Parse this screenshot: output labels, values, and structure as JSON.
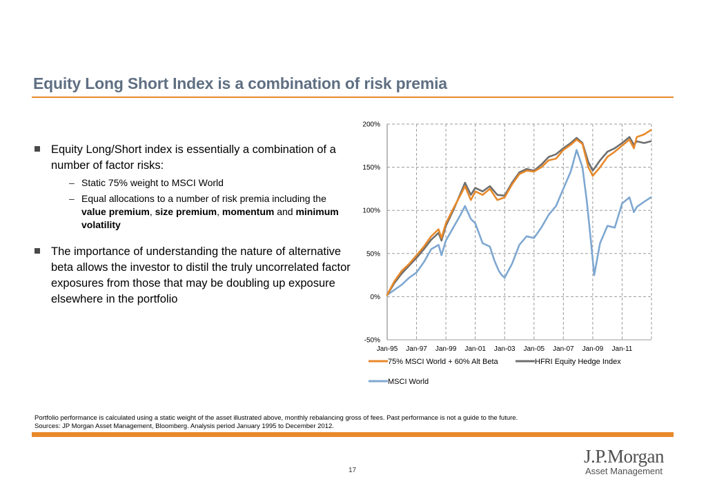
{
  "slide": {
    "title": "Equity Long Short Index is a combination of risk premia",
    "page_number": "17",
    "bullets": {
      "b1": "Equity Long/Short index is essentially a combination of a number of factor risks:",
      "b1_sub1": "Static 75% weight to MSCI World",
      "b1_sub2_pre": "Equal allocations to a number of risk premia including the",
      "b1_sub2_bold1": "value premium",
      "b1_sub2_sep1": ",",
      "b1_sub2_bold2": "size premium",
      "b1_sub2_sep2": ",",
      "b1_sub2_bold3": "momentum",
      "b1_sub2_and": "and",
      "b1_sub2_bold4": "minimum volatility",
      "b2": "The importance of understanding the nature of alternative beta allows the investor to distil the truly uncorrelated factor exposures from those that may be doubling up exposure elsewhere in the portfolio"
    },
    "footnote_line1": "Portfolio performance is calculated using  a static weight of the asset illustrated above, monthly rebalancing gross of fees. Past performance is not a guide to the future.",
    "footnote_line2": "Sources:  JP Morgan Asset Management, Bloomberg. Analysis period January 1995 to December 2012.",
    "logo_brand": "J.P.Morgan",
    "logo_sub": "Asset Management"
  },
  "colors": {
    "accent": "#e8892a",
    "title": "#5f6f82",
    "alt_beta": "#e8892a",
    "hfri": "#6e6e6e",
    "msci": "#7ea7d1"
  },
  "chart_data": {
    "type": "line",
    "x_unit": "year",
    "x_range": [
      1995.0,
      2013.0
    ],
    "x_ticks": [
      1995,
      1997,
      1999,
      2001,
      2003,
      2005,
      2007,
      2009,
      2011
    ],
    "x_tick_labels": [
      "Jan-95",
      "Jan-97",
      "Jan-99",
      "Jan-01",
      "Jan-03",
      "Jan-05",
      "Jan-07",
      "Jan-09",
      "Jan-11"
    ],
    "y_ticks": [
      -50,
      0,
      50,
      100,
      150,
      200
    ],
    "y_tick_labels": [
      "-50%",
      "0%",
      "50%",
      "100%",
      "150%",
      "200%"
    ],
    "ylim": [
      -50,
      200
    ],
    "grid": "dashed-vertical-and-horizontal",
    "legend_position": "bottom",
    "series": [
      {
        "name": "75% MSCI World + 60% Alt Beta",
        "color": "#e8892a",
        "x": [
          1995.0,
          1995.5,
          1996.0,
          1996.5,
          1997.0,
          1997.5,
          1998.0,
          1998.5,
          1998.7,
          1999.0,
          1999.5,
          2000.0,
          2000.3,
          2000.7,
          2001.0,
          2001.5,
          2002.0,
          2002.5,
          2003.0,
          2003.5,
          2004.0,
          2004.5,
          2005.0,
          2005.5,
          2006.0,
          2006.5,
          2007.0,
          2007.5,
          2007.9,
          2008.3,
          2008.7,
          2009.0,
          2009.5,
          2010.0,
          2010.5,
          2011.0,
          2011.5,
          2011.8,
          2012.0,
          2012.5,
          2012.95
        ],
        "y": [
          2,
          18,
          30,
          38,
          48,
          58,
          70,
          78,
          68,
          85,
          102,
          118,
          128,
          112,
          122,
          118,
          125,
          112,
          115,
          130,
          142,
          146,
          145,
          150,
          158,
          160,
          170,
          176,
          182,
          177,
          150,
          140,
          150,
          162,
          168,
          175,
          182,
          172,
          185,
          188,
          193
        ]
      },
      {
        "name": "HFRI Equity Hedge Index",
        "color": "#6e6e6e",
        "x": [
          1995.0,
          1995.5,
          1996.0,
          1996.5,
          1997.0,
          1997.5,
          1998.0,
          1998.5,
          1998.7,
          1999.0,
          1999.5,
          2000.0,
          2000.3,
          2000.7,
          2001.0,
          2001.5,
          2002.0,
          2002.5,
          2003.0,
          2003.5,
          2004.0,
          2004.5,
          2005.0,
          2005.5,
          2006.0,
          2006.5,
          2007.0,
          2007.5,
          2007.9,
          2008.3,
          2008.7,
          2009.0,
          2009.5,
          2010.0,
          2010.5,
          2011.0,
          2011.5,
          2011.8,
          2012.0,
          2012.5,
          2012.95
        ],
        "y": [
          2,
          16,
          27,
          36,
          45,
          55,
          66,
          74,
          65,
          82,
          100,
          120,
          132,
          118,
          126,
          122,
          128,
          118,
          117,
          132,
          144,
          148,
          146,
          153,
          162,
          165,
          172,
          178,
          184,
          178,
          156,
          146,
          158,
          168,
          172,
          178,
          185,
          176,
          180,
          178,
          180
        ]
      },
      {
        "name": "MSCI World",
        "color": "#7ea7d1",
        "x": [
          1995.0,
          1995.5,
          1996.0,
          1996.5,
          1997.0,
          1997.5,
          1998.0,
          1998.5,
          1998.7,
          1999.0,
          1999.5,
          2000.0,
          2000.3,
          2000.7,
          2001.0,
          2001.5,
          2002.0,
          2002.3,
          2002.6,
          2002.8,
          2003.0,
          2003.5,
          2004.0,
          2004.5,
          2005.0,
          2005.5,
          2006.0,
          2006.5,
          2007.0,
          2007.5,
          2007.9,
          2008.3,
          2008.6,
          2008.9,
          2009.1,
          2009.5,
          2010.0,
          2010.5,
          2011.0,
          2011.5,
          2011.8,
          2012.0,
          2012.5,
          2012.95
        ],
        "y": [
          2,
          8,
          14,
          22,
          28,
          40,
          55,
          60,
          48,
          65,
          80,
          95,
          105,
          90,
          85,
          62,
          58,
          42,
          30,
          25,
          22,
          38,
          60,
          70,
          68,
          80,
          95,
          105,
          125,
          145,
          170,
          150,
          110,
          60,
          25,
          62,
          82,
          80,
          108,
          115,
          98,
          104,
          110,
          115
        ]
      }
    ]
  }
}
